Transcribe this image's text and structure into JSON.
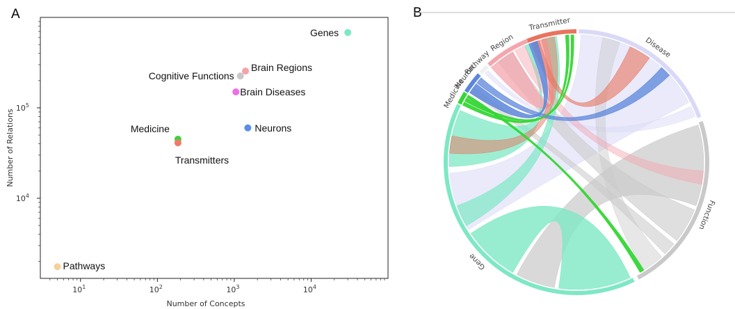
{
  "panels": {
    "a_label": "A",
    "b_label": "B"
  },
  "chart_data": [
    {
      "type": "scatter",
      "scale": "log-log",
      "xlabel": "Number of Concepts",
      "ylabel": "Number of Relations",
      "xlim": [
        3,
        100000
      ],
      "ylim": [
        1300,
        1000000
      ],
      "xticks": [
        {
          "value": 10,
          "base": "10",
          "exp": "1"
        },
        {
          "value": 100,
          "base": "10",
          "exp": "2"
        },
        {
          "value": 1000,
          "base": "10",
          "exp": "3"
        },
        {
          "value": 10000,
          "base": "10",
          "exp": "4"
        }
      ],
      "yticks": [
        {
          "value": 10000,
          "base": "10",
          "exp": "4"
        },
        {
          "value": 100000,
          "base": "10",
          "exp": "5"
        }
      ],
      "points": [
        {
          "label": "Genes",
          "x": 30000,
          "y": 680000,
          "color": "#7ee8c4",
          "anchor": "end",
          "dx": -13,
          "dy": 5
        },
        {
          "label": "Brain Regions",
          "x": 1400,
          "y": 255000,
          "color": "#f4a3a8",
          "anchor": "start",
          "dx": 8,
          "dy": 0
        },
        {
          "label": "Cognitive Functions",
          "x": 1200,
          "y": 225000,
          "color": "#c8c8c8",
          "anchor": "end",
          "dx": -9,
          "dy": 5
        },
        {
          "label": "Brain Diseases",
          "x": 1050,
          "y": 150000,
          "color": "#ef6ee8",
          "anchor": "start",
          "dx": 6,
          "dy": 5
        },
        {
          "label": "Neurons",
          "x": 1500,
          "y": 60000,
          "color": "#5b8ee6",
          "anchor": "start",
          "dx": 10,
          "dy": 5
        },
        {
          "label": "Medicine",
          "x": 185,
          "y": 45000,
          "color": "#3fd13f",
          "anchor": "end",
          "dx": -12,
          "dy": -10
        },
        {
          "label": "Transmitters",
          "x": 185,
          "y": 41000,
          "color": "#ef7b6a",
          "anchor": "start",
          "dx": -4,
          "dy": 30
        },
        {
          "label": "Pathways",
          "x": 5,
          "y": 1750,
          "color": "#f7cf9b",
          "anchor": "start",
          "dx": 8,
          "dy": 4
        }
      ]
    },
    {
      "type": "chord",
      "groups": [
        {
          "name": "Transmitter",
          "color": "#e8745f"
        },
        {
          "name": "Disease",
          "color": "#d9d9f7"
        },
        {
          "name": "Function",
          "color": "#c9c9c9"
        },
        {
          "name": "Gene",
          "color": "#7ee8c4"
        },
        {
          "name": "Medicine",
          "color": "#35d635"
        },
        {
          "name": "Neuron",
          "color": "#5b86db"
        },
        {
          "name": "Pathway",
          "color": "#f0f0f0"
        },
        {
          "name": "Region",
          "color": "#f4a5ad"
        }
      ]
    }
  ]
}
